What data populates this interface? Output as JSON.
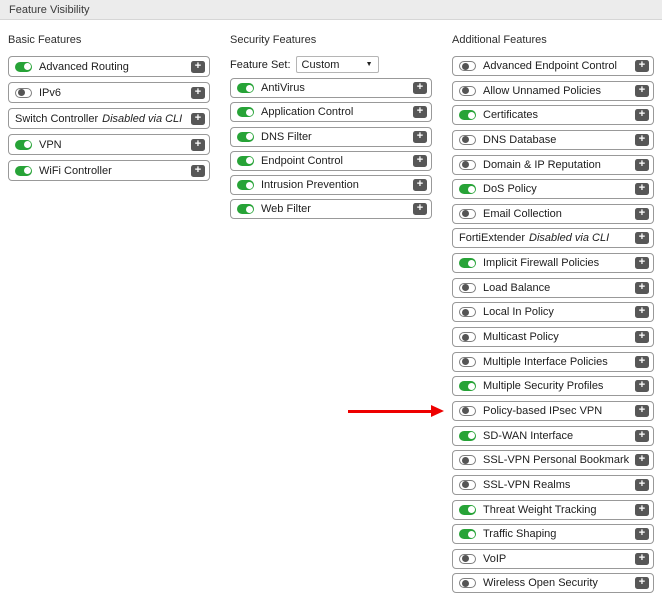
{
  "header": {
    "title": "Feature Visibility"
  },
  "icons": {
    "plus": "+",
    "chevron_down": "▼"
  },
  "colors": {
    "toggle_on": "#27a337",
    "toggle_off_knob": "#555555",
    "plus_button": "#575757",
    "arrow": "#ee0000",
    "header_bar": "#ececec",
    "row_border": "#999999"
  },
  "annotation": {
    "type": "red-arrow",
    "points_to": "Policy-based IPsec VPN"
  },
  "columns": [
    {
      "id": "basic",
      "title": "Basic Features",
      "features": [
        {
          "label": "Advanced Routing",
          "state": "on"
        },
        {
          "label": "IPv6",
          "state": "off"
        },
        {
          "label": "Switch Controller",
          "state": "cli_disabled",
          "note": "Disabled via CLI"
        },
        {
          "label": "VPN",
          "state": "on"
        },
        {
          "label": "WiFi Controller",
          "state": "on"
        }
      ]
    },
    {
      "id": "security",
      "title": "Security Features",
      "feature_set": {
        "label": "Feature Set:",
        "value": "Custom"
      },
      "features": [
        {
          "label": "AntiVirus",
          "state": "on"
        },
        {
          "label": "Application Control",
          "state": "on"
        },
        {
          "label": "DNS Filter",
          "state": "on"
        },
        {
          "label": "Endpoint Control",
          "state": "on"
        },
        {
          "label": "Intrusion Prevention",
          "state": "on"
        },
        {
          "label": "Web Filter",
          "state": "on"
        }
      ]
    },
    {
      "id": "additional",
      "title": "Additional Features",
      "features": [
        {
          "label": "Advanced Endpoint Control",
          "state": "off"
        },
        {
          "label": "Allow Unnamed Policies",
          "state": "off"
        },
        {
          "label": "Certificates",
          "state": "on"
        },
        {
          "label": "DNS Database",
          "state": "off"
        },
        {
          "label": "Domain & IP Reputation",
          "state": "off"
        },
        {
          "label": "DoS Policy",
          "state": "on"
        },
        {
          "label": "Email Collection",
          "state": "off"
        },
        {
          "label": "FortiExtender",
          "state": "cli_disabled",
          "note": "Disabled via CLI"
        },
        {
          "label": "Implicit Firewall Policies",
          "state": "on"
        },
        {
          "label": "Load Balance",
          "state": "off"
        },
        {
          "label": "Local In Policy",
          "state": "off"
        },
        {
          "label": "Multicast Policy",
          "state": "off"
        },
        {
          "label": "Multiple Interface Policies",
          "state": "off"
        },
        {
          "label": "Multiple Security Profiles",
          "state": "on"
        },
        {
          "label": "Policy-based IPsec VPN",
          "state": "off"
        },
        {
          "label": "SD-WAN Interface",
          "state": "on"
        },
        {
          "label": "SSL-VPN Personal Bookmark",
          "state": "off"
        },
        {
          "label": "SSL-VPN Realms",
          "state": "off"
        },
        {
          "label": "Threat Weight Tracking",
          "state": "on"
        },
        {
          "label": "Traffic Shaping",
          "state": "on"
        },
        {
          "label": "VoIP",
          "state": "off"
        },
        {
          "label": "Wireless Open Security",
          "state": "off"
        }
      ]
    }
  ]
}
